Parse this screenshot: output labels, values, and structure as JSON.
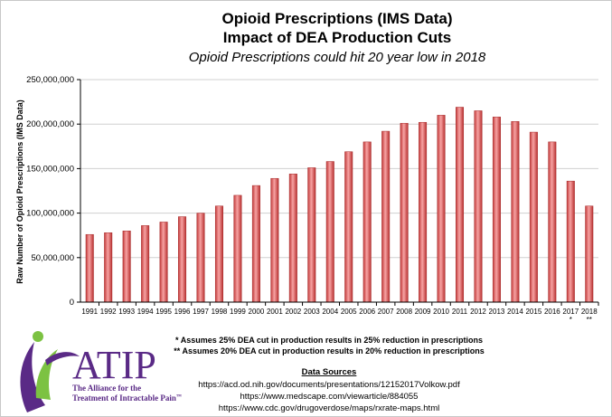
{
  "chart_data": {
    "type": "bar",
    "title": "Opioid Prescriptions (IMS Data)",
    "subtitle_line2": "Impact of DEA Production Cuts",
    "subtitle": "Opioid Prescriptions could hit 20 year low in 2018",
    "ylabel": "Raw Number of Opioid Prescriptions (IMS Data)",
    "xlabel": "",
    "ylim": [
      0,
      250000000
    ],
    "yticks": [
      0,
      50000000,
      100000000,
      150000000,
      200000000,
      250000000
    ],
    "ytick_labels": [
      "0",
      "50,000,000",
      "100,000,000",
      "150,000,000",
      "200,000,000",
      "250,000,000"
    ],
    "grid": true,
    "bar_color": "#d94a4a",
    "categories": [
      "1991",
      "1992",
      "1993",
      "1994",
      "1995",
      "1996",
      "1997",
      "1998",
      "1999",
      "2000",
      "2001",
      "2002",
      "2003",
      "2004",
      "2005",
      "2006",
      "2007",
      "2008",
      "2009",
      "2010",
      "2011",
      "2012",
      "2013",
      "2014",
      "2015",
      "2016",
      "2017",
      "2018"
    ],
    "category_marks": [
      "",
      "",
      "",
      "",
      "",
      "",
      "",
      "",
      "",
      "",
      "",
      "",
      "",
      "",
      "",
      "",
      "",
      "",
      "",
      "",
      "",
      "",
      "",
      "",
      "",
      "",
      "*",
      "**"
    ],
    "values": [
      76000000,
      78000000,
      80000000,
      86000000,
      90000000,
      96000000,
      100000000,
      108000000,
      120000000,
      131000000,
      139000000,
      144000000,
      151000000,
      158000000,
      169000000,
      180000000,
      192000000,
      201000000,
      202000000,
      210000000,
      219000000,
      215000000,
      208000000,
      203000000,
      191000000,
      180000000,
      136000000,
      108000000
    ]
  },
  "notes": [
    "* Assumes 25% DEA cut in production results in 25% reduction in prescriptions",
    "** Assumes 20% DEA cut in production results in 20% reduction in prescriptions"
  ],
  "sources": {
    "title": "Data Sources",
    "items": [
      "https://acd.od.nih.gov/documents/presentations/12152017Volkow.pdf",
      "https://www.medscape.com/viewarticle/884055",
      "https://www.cdc.gov/drugoverdose/maps/rxrate-maps.html"
    ]
  },
  "logo": {
    "name": "ATIP",
    "tagline_line1": "The Alliance for the",
    "tagline_line2": "Treatment of Intractable Pain",
    "tm": "™",
    "purple": "#5a2a86",
    "green": "#7cc242"
  }
}
